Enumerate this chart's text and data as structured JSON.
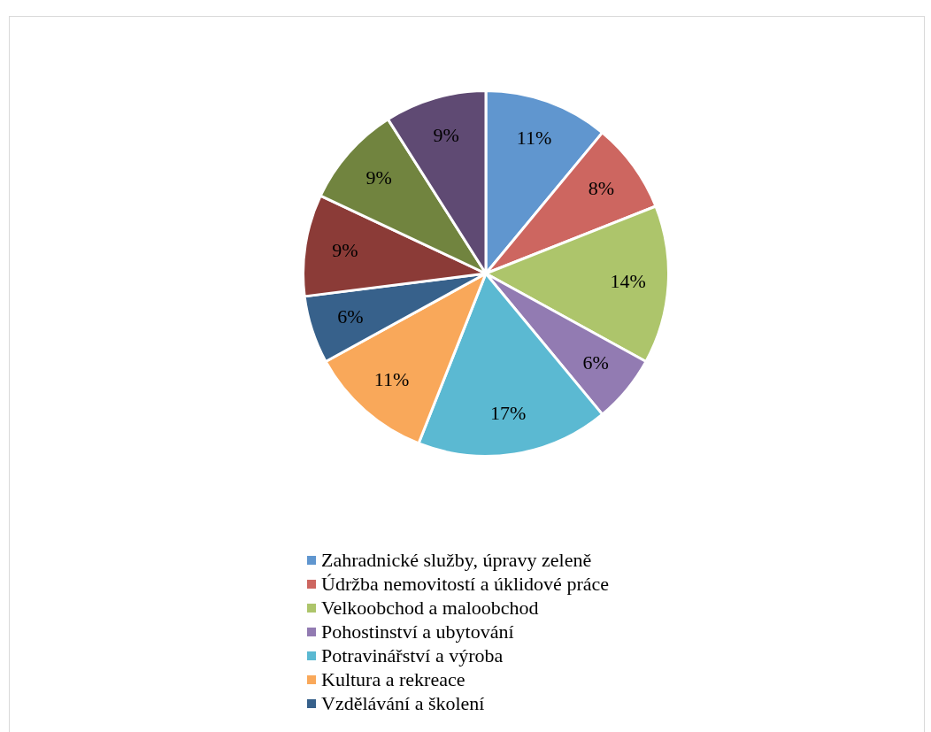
{
  "chart_data": {
    "type": "pie",
    "categories": [
      "Zahradnické služby, úpravy zeleně",
      "Údržba nemovitostí a úklidové práce",
      "Velkoobchod a maloobchod",
      "Pohostinství a ubytování",
      "Potravinářství a výroba",
      "Kultura a rekreace",
      "Vzdělávání a školení",
      null,
      null,
      null
    ],
    "values": [
      11,
      8,
      14,
      6,
      17,
      11,
      6,
      9,
      9,
      9
    ],
    "value_labels": [
      "11%",
      "8%",
      "14%",
      "6%",
      "17%",
      "11%",
      "6%",
      "9%",
      "9%",
      "9%"
    ],
    "colors": [
      "#6096cf",
      "#cd6660",
      "#adc56b",
      "#927bb2",
      "#5bb9d2",
      "#f9a85a",
      "#37618b",
      "#8b3b37",
      "#71843f",
      "#5f4a73"
    ],
    "legend": "bottom"
  }
}
